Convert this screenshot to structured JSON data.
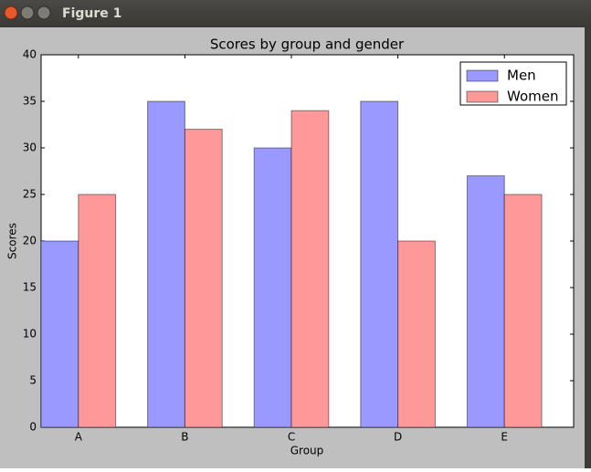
{
  "window": {
    "title": "Figure 1"
  },
  "chart_data": {
    "type": "bar",
    "title": "Scores by group and gender",
    "x_label": "Group",
    "y_label": "Scores",
    "categories": [
      "A",
      "B",
      "C",
      "D",
      "E"
    ],
    "series": [
      {
        "name": "Men",
        "color": "#9999ff",
        "values": [
          20,
          35,
          30,
          35,
          27
        ]
      },
      {
        "name": "Women",
        "color": "#ff9999",
        "values": [
          25,
          32,
          34,
          20,
          25
        ]
      }
    ],
    "ylim": [
      0,
      40
    ],
    "yticks": [
      0,
      5,
      10,
      15,
      20,
      25,
      30,
      35,
      40
    ],
    "grid": false,
    "legend": "upper right"
  }
}
